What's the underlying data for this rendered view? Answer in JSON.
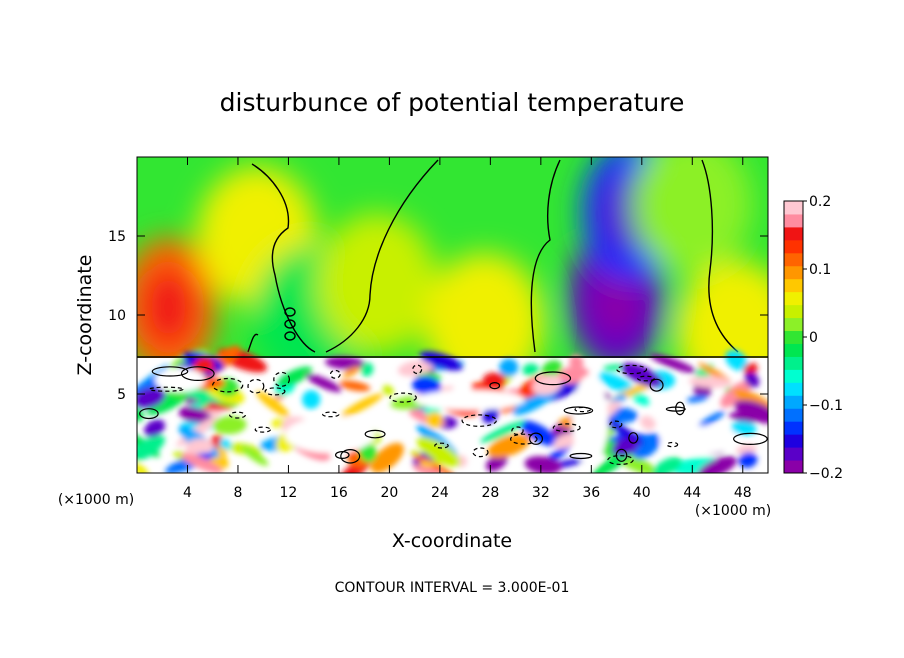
{
  "chart_data": {
    "type": "heatmap",
    "title": "disturbunce of potential temperature",
    "xlabel": "X-coordinate",
    "ylabel": "Z-coordinate",
    "x_unit_label": "(×1000 m)",
    "x_unit_label_right": "(×1000 m)",
    "footer": "CONTOUR INTERVAL = 3.000E-01",
    "xlim": [
      0,
      50
    ],
    "ylim": [
      0,
      20
    ],
    "x_ticks": [
      4,
      8,
      12,
      16,
      20,
      24,
      28,
      32,
      36,
      40,
      44,
      48
    ],
    "x_tick_labels": [
      "4",
      "8",
      "12",
      "16",
      "20",
      "24",
      "28",
      "32",
      "36",
      "40",
      "44",
      "48"
    ],
    "y_ticks": [
      5,
      10,
      15
    ],
    "y_tick_labels": [
      "5",
      "10",
      "15"
    ],
    "colorbar": {
      "min": -0.2,
      "max": 0.2,
      "ticks": [
        0.2,
        0.1,
        0,
        -0.1,
        -0.2
      ],
      "tick_labels": [
        "0.2",
        "0.1",
        "0",
        "−0.1",
        "−0.2"
      ],
      "colors": [
        "#8a00a8",
        "#5a00c8",
        "#1e00e0",
        "#0032ff",
        "#0070ff",
        "#00a8ff",
        "#00e0ff",
        "#00ffd0",
        "#00f08c",
        "#00e650",
        "#32e632",
        "#8cf028",
        "#c8f000",
        "#f0f000",
        "#ffc800",
        "#ff9600",
        "#ff6400",
        "#ff3200",
        "#f01414",
        "#ff8ca0",
        "#ffc8d2"
      ]
    },
    "boundary_layer_top": 7.3,
    "upper_anomaly_centers": [
      {
        "x": 2.5,
        "z": 10.5,
        "value": 0.12
      },
      {
        "x": 9.5,
        "z": 15.0,
        "value": 0.06
      },
      {
        "x": 14.0,
        "z": 10.0,
        "value": -0.02
      },
      {
        "x": 19.0,
        "z": 12.0,
        "value": 0.04
      },
      {
        "x": 27.5,
        "z": 9.5,
        "value": 0.06
      },
      {
        "x": 38.0,
        "z": 11.0,
        "value": -0.18
      },
      {
        "x": 39.0,
        "z": 16.5,
        "value": -0.14
      },
      {
        "x": 44.0,
        "z": 17.0,
        "value": 0.02
      },
      {
        "x": 47.5,
        "z": 9.0,
        "value": 0.05
      }
    ]
  },
  "colors": {
    "frame": "#000000",
    "background": "#ffffff",
    "upper_base": "#32e632"
  }
}
